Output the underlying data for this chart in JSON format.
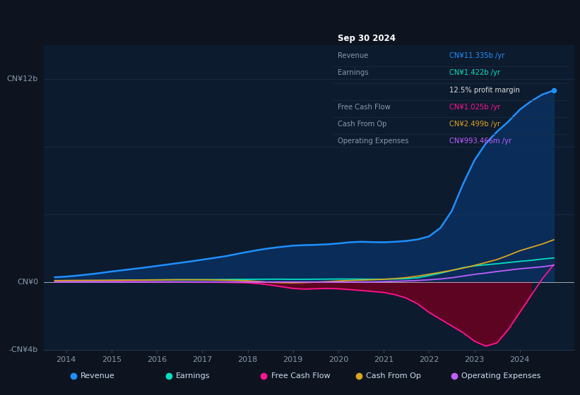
{
  "bg_color": "#0d1420",
  "plot_bg_color": "#0d1b2e",
  "grid_color": "#1a2d45",
  "zero_line_color": "#cccccc",
  "title_text": "Sep 30 2024",
  "ylim_min": -4000000000,
  "ylim_max": 14000000000,
  "xlim_min": 2013.5,
  "xlim_max": 2025.2,
  "ytick_positions": [
    -4000000000,
    0,
    4000000000,
    8000000000,
    12000000000
  ],
  "ytick_labels": [
    "-CN¥4b",
    "CN¥0",
    "",
    "",
    "CN¥12b"
  ],
  "xtick_positions": [
    2014,
    2015,
    2016,
    2017,
    2018,
    2019,
    2020,
    2021,
    2022,
    2023,
    2024
  ],
  "xtick_labels": [
    "2014",
    "2015",
    "2016",
    "2017",
    "2018",
    "2019",
    "2020",
    "2021",
    "2022",
    "2023",
    "2024"
  ],
  "years": [
    2013.75,
    2014.0,
    2014.25,
    2014.5,
    2014.75,
    2015.0,
    2015.25,
    2015.5,
    2015.75,
    2016.0,
    2016.25,
    2016.5,
    2016.75,
    2017.0,
    2017.25,
    2017.5,
    2017.75,
    2018.0,
    2018.25,
    2018.5,
    2018.75,
    2019.0,
    2019.25,
    2019.5,
    2019.75,
    2020.0,
    2020.25,
    2020.5,
    2020.75,
    2021.0,
    2021.25,
    2021.5,
    2021.75,
    2022.0,
    2022.25,
    2022.5,
    2022.75,
    2023.0,
    2023.25,
    2023.5,
    2023.75,
    2024.0,
    2024.25,
    2024.5,
    2024.75
  ],
  "revenue": [
    280000000,
    320000000,
    380000000,
    450000000,
    530000000,
    620000000,
    700000000,
    780000000,
    860000000,
    950000000,
    1040000000,
    1130000000,
    1220000000,
    1320000000,
    1420000000,
    1520000000,
    1650000000,
    1780000000,
    1900000000,
    2000000000,
    2080000000,
    2150000000,
    2180000000,
    2200000000,
    2230000000,
    2280000000,
    2350000000,
    2380000000,
    2360000000,
    2350000000,
    2380000000,
    2430000000,
    2520000000,
    2700000000,
    3200000000,
    4200000000,
    5800000000,
    7200000000,
    8200000000,
    8900000000,
    9500000000,
    10200000000,
    10700000000,
    11100000000,
    11335000000
  ],
  "earnings": [
    50000000,
    60000000,
    65000000,
    75000000,
    85000000,
    95000000,
    105000000,
    115000000,
    120000000,
    125000000,
    130000000,
    135000000,
    138000000,
    140000000,
    142000000,
    148000000,
    155000000,
    160000000,
    162000000,
    165000000,
    165000000,
    158000000,
    160000000,
    165000000,
    170000000,
    175000000,
    175000000,
    170000000,
    165000000,
    165000000,
    175000000,
    195000000,
    250000000,
    380000000,
    520000000,
    680000000,
    850000000,
    950000000,
    1020000000,
    1080000000,
    1150000000,
    1220000000,
    1280000000,
    1360000000,
    1422000000
  ],
  "free_cash_flow": [
    20000000,
    25000000,
    25000000,
    20000000,
    20000000,
    25000000,
    25000000,
    20000000,
    15000000,
    10000000,
    5000000,
    0,
    -5000000,
    -10000000,
    -15000000,
    -20000000,
    -30000000,
    -50000000,
    -100000000,
    -180000000,
    -280000000,
    -380000000,
    -420000000,
    -400000000,
    -380000000,
    -400000000,
    -450000000,
    -500000000,
    -560000000,
    -620000000,
    -750000000,
    -950000000,
    -1300000000,
    -1800000000,
    -2200000000,
    -2600000000,
    -3000000000,
    -3500000000,
    -3800000000,
    -3600000000,
    -2800000000,
    -1800000000,
    -800000000,
    200000000,
    1025000000
  ],
  "cash_from_op": [
    80000000,
    90000000,
    95000000,
    100000000,
    100000000,
    105000000,
    110000000,
    115000000,
    120000000,
    125000000,
    130000000,
    132000000,
    130000000,
    128000000,
    120000000,
    110000000,
    95000000,
    70000000,
    30000000,
    -20000000,
    -40000000,
    -50000000,
    -30000000,
    -10000000,
    20000000,
    60000000,
    90000000,
    110000000,
    130000000,
    160000000,
    200000000,
    260000000,
    350000000,
    460000000,
    570000000,
    690000000,
    820000000,
    980000000,
    1150000000,
    1330000000,
    1580000000,
    1850000000,
    2050000000,
    2250000000,
    2499000000
  ],
  "operating_expenses": [
    0,
    0,
    0,
    0,
    0,
    0,
    0,
    0,
    0,
    0,
    0,
    0,
    0,
    0,
    0,
    0,
    0,
    0,
    0,
    0,
    0,
    0,
    0,
    0,
    0,
    0,
    0,
    0,
    0,
    20000000,
    40000000,
    60000000,
    90000000,
    130000000,
    180000000,
    250000000,
    350000000,
    450000000,
    530000000,
    620000000,
    700000000,
    780000000,
    840000000,
    900000000,
    993466000
  ],
  "revenue_line_color": "#1e90ff",
  "earnings_line_color": "#00e0c0",
  "fcf_line_color": "#ff1493",
  "cash_op_line_color": "#daa520",
  "op_exp_line_color": "#bf5fff",
  "revenue_fill_color": "#0a3060",
  "fcf_fill_color": "#6b0020",
  "legend_bg": "#131e30",
  "legend_border": "#2a3d55",
  "legend_items": [
    {
      "label": "Revenue",
      "color": "#1e90ff"
    },
    {
      "label": "Earnings",
      "color": "#00e0c0"
    },
    {
      "label": "Free Cash Flow",
      "color": "#ff1493"
    },
    {
      "label": "Cash From Op",
      "color": "#daa520"
    },
    {
      "label": "Operating Expenses",
      "color": "#bf5fff"
    }
  ],
  "table_bg": "#050a10",
  "table_border": "#2a3a50",
  "table_title_color": "#ffffff",
  "table_label_color": "#8899aa",
  "table_rows": [
    {
      "label": "Revenue",
      "value": "CN¥11.335b /yr",
      "value_color": "#1e90ff"
    },
    {
      "label": "Earnings",
      "value": "CN¥1.422b /yr",
      "value_color": "#00e0c0"
    },
    {
      "label": "",
      "value": "12.5% profit margin",
      "value_color": "#dddddd"
    },
    {
      "label": "Free Cash Flow",
      "value": "CN¥1.025b /yr",
      "value_color": "#ff1493"
    },
    {
      "label": "Cash From Op",
      "value": "CN¥2.499b /yr",
      "value_color": "#daa520"
    },
    {
      "label": "Operating Expenses",
      "value": "CN¥993.466m /yr",
      "value_color": "#bf5fff"
    }
  ]
}
